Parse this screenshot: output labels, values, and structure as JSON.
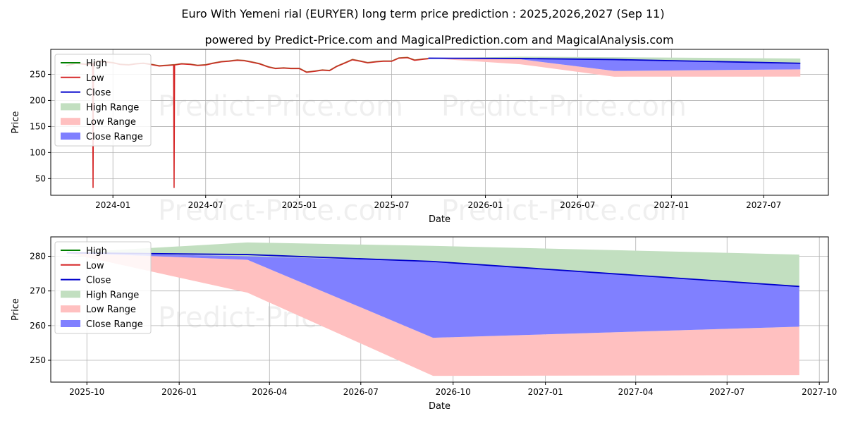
{
  "title": "Euro With Yemeni rial (EURYER) long term price prediction : 2025,2026,2027 (Sep 11)",
  "subtitle": "powered by Predict-Price.com and MagicalPrediction.com and MagicalAnalysis.com",
  "watermark": "Predict-Price.com",
  "colors": {
    "high": "#008000",
    "low": "#d62728",
    "close": "#0000cc",
    "high_range": "#c2dfc0",
    "low_range": "#ffc0c0",
    "close_range": "#8080ff"
  },
  "legend": [
    {
      "key": "high",
      "label": "High",
      "kind": "line"
    },
    {
      "key": "low",
      "label": "Low",
      "kind": "line"
    },
    {
      "key": "close",
      "label": "Close",
      "kind": "line"
    },
    {
      "key": "high_range",
      "label": "High Range",
      "kind": "patch"
    },
    {
      "key": "low_range",
      "label": "Low Range",
      "kind": "patch"
    },
    {
      "key": "close_range",
      "label": "Close Range",
      "kind": "patch"
    }
  ],
  "chart_data": [
    {
      "type": "line",
      "xlabel": "Date",
      "ylabel": "Price",
      "xlim": [
        "2023-09-01",
        "2027-11-05"
      ],
      "ylim": [
        18,
        298
      ],
      "xticks": [
        "2024-01",
        "2024-07",
        "2025-01",
        "2025-07",
        "2026-01",
        "2026-07",
        "2027-01",
        "2027-07"
      ],
      "yticks": [
        50,
        100,
        150,
        200,
        250
      ],
      "grid": true,
      "legend_position": "top-left",
      "history": {
        "x": [
          "2023-10-01",
          "2023-10-20",
          "2023-11-10",
          "2023-11-22",
          "2023-11-23",
          "2023-11-24",
          "2023-12-01",
          "2023-12-15",
          "2024-01-01",
          "2024-01-15",
          "2024-02-01",
          "2024-02-15",
          "2024-03-01",
          "2024-03-15",
          "2024-04-01",
          "2024-04-15",
          "2024-04-29",
          "2024-04-30",
          "2024-05-01",
          "2024-05-15",
          "2024-06-01",
          "2024-06-15",
          "2024-07-01",
          "2024-07-15",
          "2024-08-01",
          "2024-08-15",
          "2024-09-01",
          "2024-09-15",
          "2024-10-01",
          "2024-10-15",
          "2024-11-01",
          "2024-11-15",
          "2024-12-01",
          "2024-12-15",
          "2025-01-01",
          "2025-01-15",
          "2025-02-01",
          "2025-02-15",
          "2025-03-01",
          "2025-03-15",
          "2025-04-01",
          "2025-04-15",
          "2025-05-01",
          "2025-05-15",
          "2025-06-01",
          "2025-06-15",
          "2025-07-01",
          "2025-07-15",
          "2025-08-01",
          "2025-08-15",
          "2025-09-01",
          "2025-09-11"
        ],
        "close": [
          267,
          272,
          270,
          271,
          271,
          271,
          276,
          275,
          273,
          270,
          269,
          271,
          272,
          270,
          267,
          268,
          269,
          269,
          269,
          271,
          270,
          268,
          269,
          272,
          275,
          276,
          278,
          277,
          274,
          271,
          265,
          262,
          263,
          262,
          262,
          255,
          257,
          259,
          258,
          266,
          273,
          279,
          276,
          273,
          275,
          276,
          276,
          282,
          283,
          278,
          280,
          281
        ],
        "low": [
          266,
          271,
          269,
          270,
          32,
          270,
          275,
          274,
          272,
          269,
          268,
          270,
          271,
          269,
          266,
          267,
          268,
          32,
          268,
          270,
          269,
          267,
          268,
          271,
          274,
          275,
          277,
          276,
          273,
          270,
          264,
          261,
          262,
          261,
          261,
          254,
          256,
          258,
          257,
          265,
          272,
          278,
          275,
          272,
          274,
          275,
          275,
          281,
          282,
          277,
          279,
          280
        ]
      },
      "forecast": {
        "x": [
          "2025-09-11",
          "2026-03-10",
          "2026-09-11",
          "2027-09-11"
        ],
        "close": [
          281,
          280.5,
          278.5,
          271.3
        ],
        "high_range": [
          [
            281,
            281
          ],
          [
            284,
            280
          ],
          [
            283,
            278.5
          ],
          [
            280.5,
            270
          ]
        ],
        "close_range": [
          [
            281,
            281
          ],
          [
            279,
            280
          ],
          [
            256.5,
            278.5
          ],
          [
            259.7,
            271.3
          ]
        ],
        "low_range": [
          [
            281,
            281
          ],
          [
            269.5,
            279
          ],
          [
            245.5,
            256.5
          ],
          [
            245.7,
            259.7
          ]
        ]
      }
    },
    {
      "type": "line",
      "xlabel": "Date",
      "ylabel": "Price",
      "xlim": [
        "2025-08-26",
        "2027-10-10"
      ],
      "ylim": [
        243.7,
        285.6
      ],
      "xticks": [
        "2025-10",
        "2026-01",
        "2026-04",
        "2026-07",
        "2026-10",
        "2027-01",
        "2027-04",
        "2027-07",
        "2027-10"
      ],
      "yticks": [
        250,
        260,
        270,
        280
      ],
      "grid": true,
      "legend_position": "top-left",
      "forecast": {
        "x": [
          "2025-09-11",
          "2026-03-10",
          "2026-09-11",
          "2027-09-11"
        ],
        "close": [
          281,
          280.5,
          278.5,
          271.3
        ],
        "high_range": [
          [
            281,
            281
          ],
          [
            284,
            280
          ],
          [
            283,
            278.5
          ],
          [
            280.5,
            270
          ]
        ],
        "close_range": [
          [
            281,
            281
          ],
          [
            279,
            280
          ],
          [
            256.5,
            278.5
          ],
          [
            259.7,
            271.3
          ]
        ],
        "low_range": [
          [
            281,
            281
          ],
          [
            269.5,
            279
          ],
          [
            245.5,
            256.5
          ],
          [
            245.7,
            259.7
          ]
        ]
      }
    }
  ]
}
